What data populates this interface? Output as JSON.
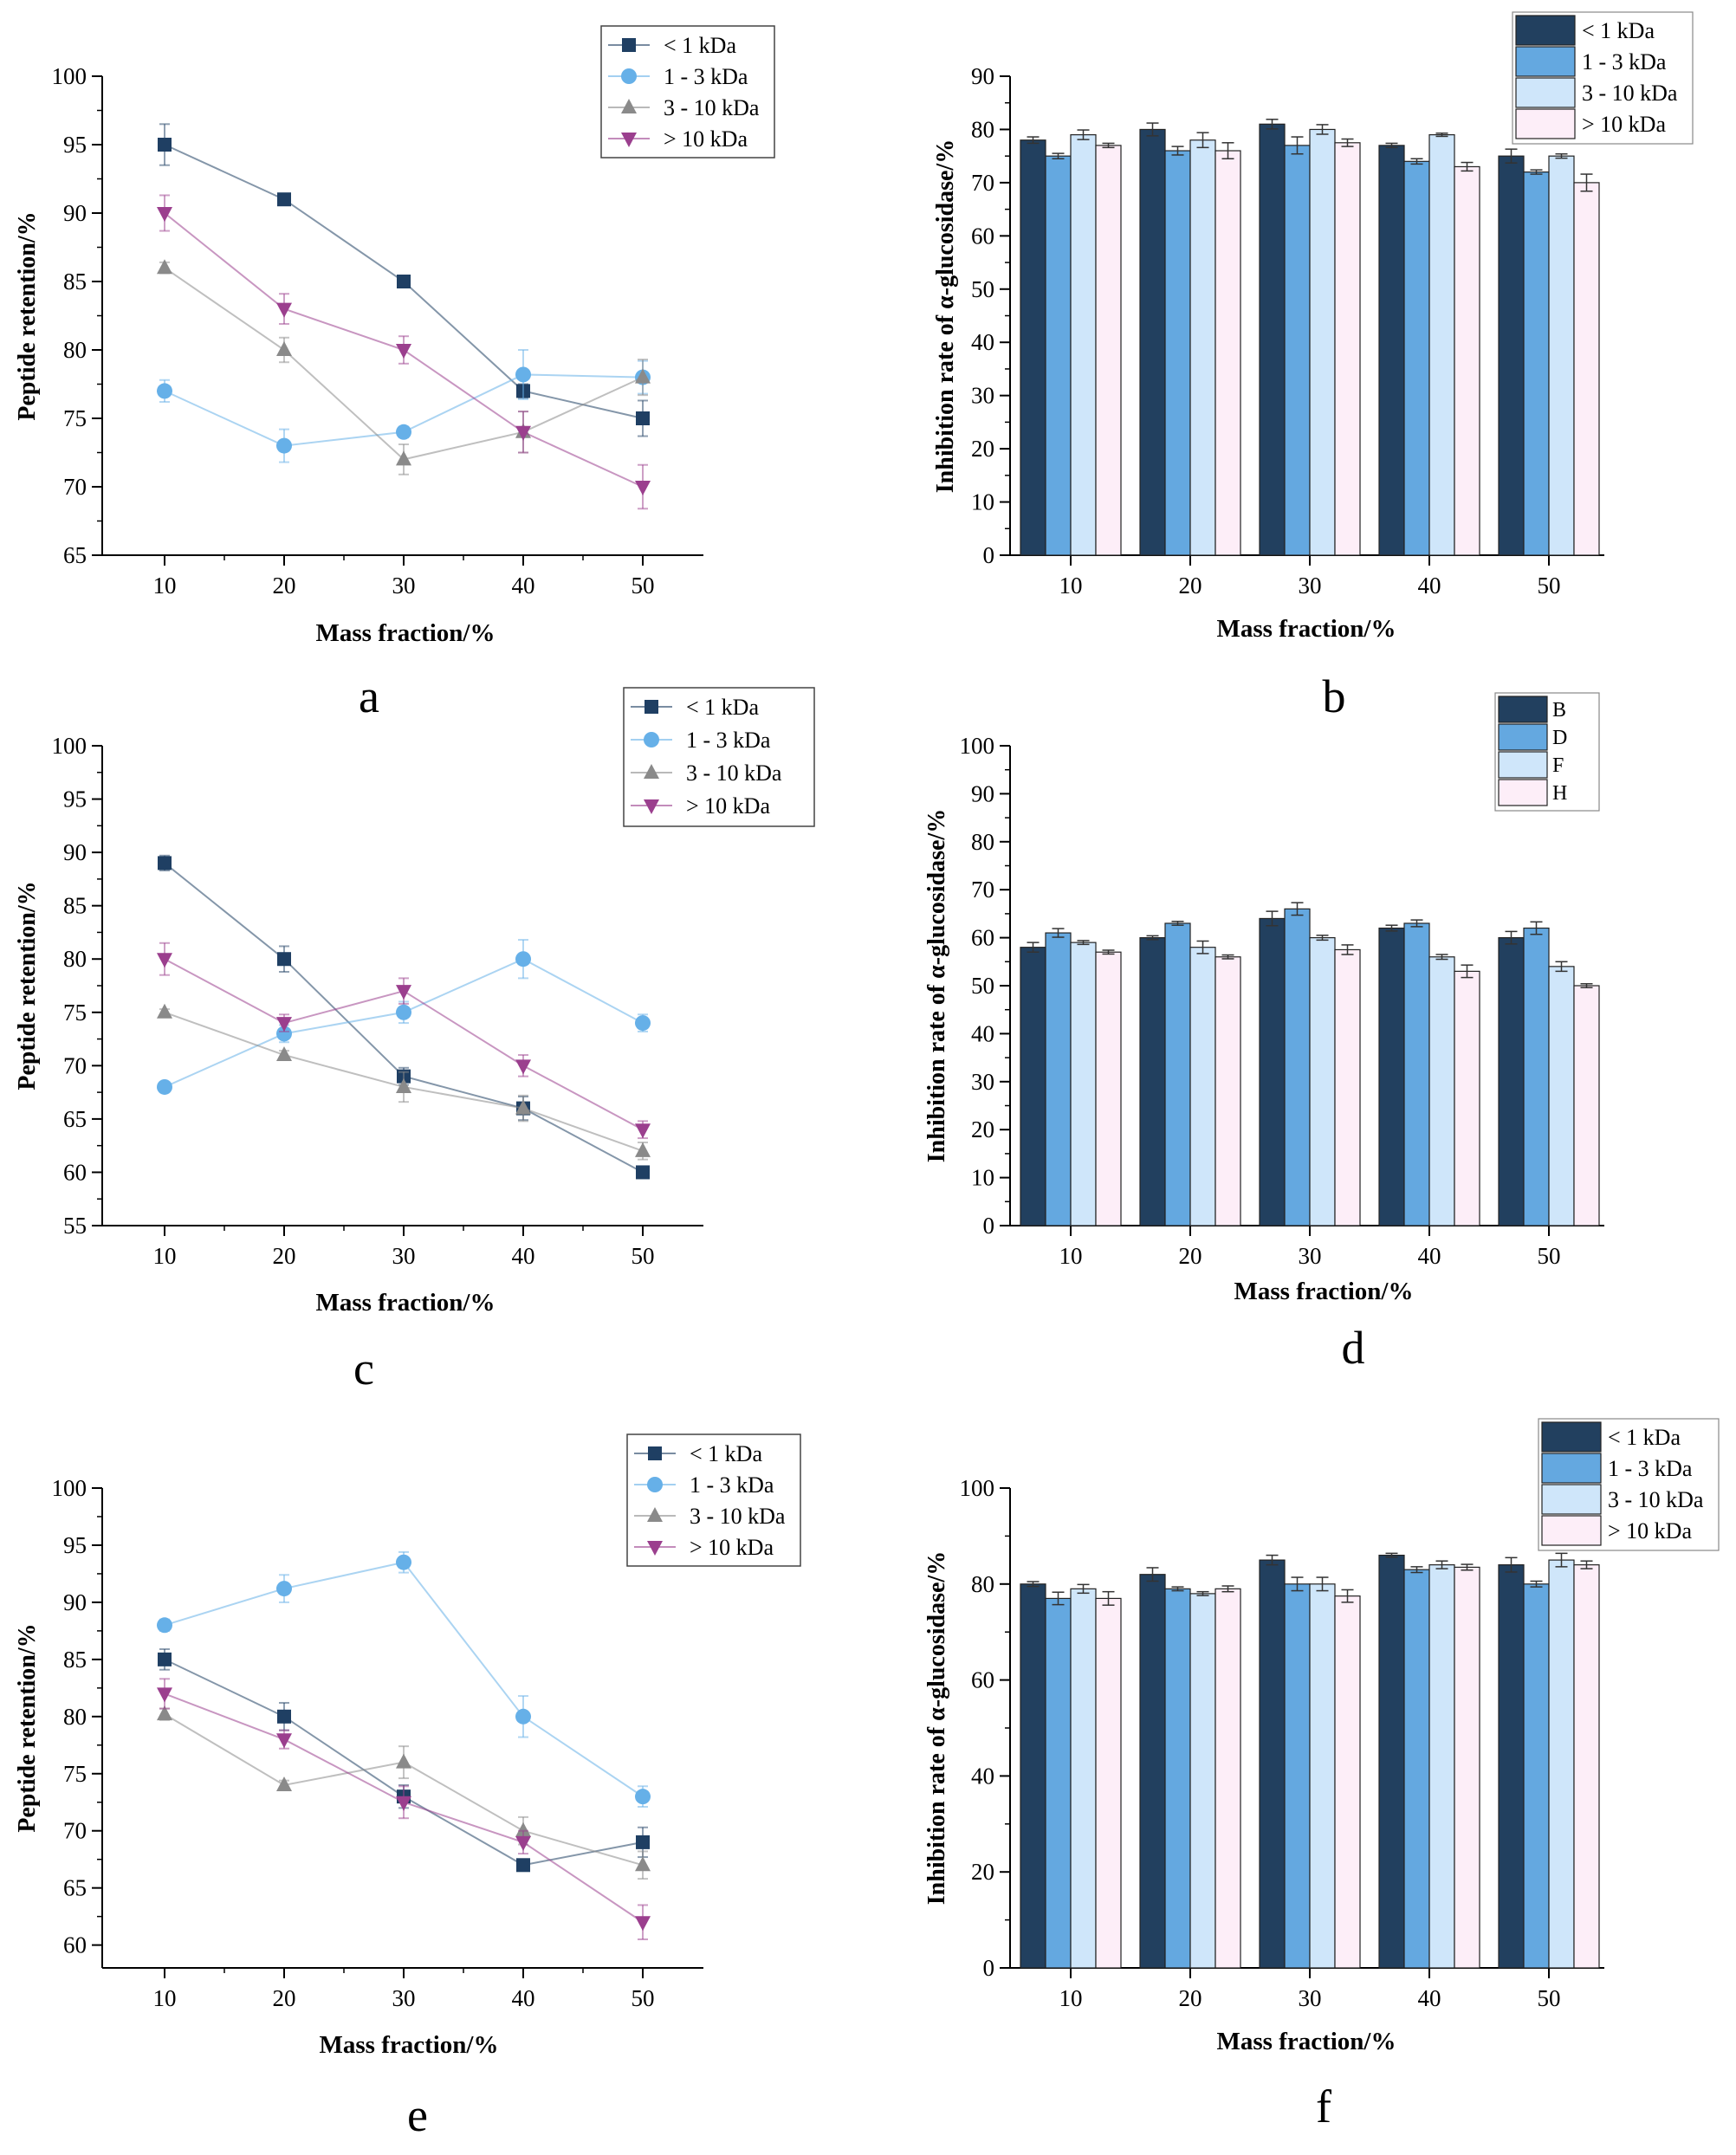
{
  "colors": {
    "lt1": "#1f3f63",
    "s1to3": "#66b0e8",
    "s3to10": "#8a8a8a",
    "gt10": "#9b3f8e",
    "bar1": "#22405f",
    "bar2": "#64a8e0",
    "bar3": "#cfe6fa",
    "bar4": "#fdeef8",
    "axis": "#000000"
  },
  "chart_data": [
    {
      "id": "a",
      "panel_label": "a",
      "type": "line",
      "xlabel": "Mass fraction/%",
      "ylabel": "Peptide retention/%",
      "ylim": [
        65,
        100
      ],
      "yticks": [
        65,
        70,
        75,
        80,
        85,
        90,
        95,
        100
      ],
      "categories": [
        "10",
        "20",
        "30",
        "40",
        "50"
      ],
      "legend": "top-right",
      "series": [
        {
          "name": "< 1 kDa",
          "marker": "square",
          "colorKey": "lt1",
          "values": [
            95,
            91,
            85,
            77,
            75
          ],
          "errors": [
            1.5,
            0.3,
            0.3,
            0.5,
            1.3
          ]
        },
        {
          "name": "1 - 3 kDa",
          "marker": "circle",
          "colorKey": "s1to3",
          "values": [
            77,
            73,
            74,
            78.2,
            78
          ],
          "errors": [
            0.8,
            1.2,
            0.4,
            1.8,
            1.2
          ]
        },
        {
          "name": "3 - 10 kDa",
          "marker": "triangle",
          "colorKey": "s3to10",
          "values": [
            86,
            80,
            72,
            74,
            78
          ],
          "errors": [
            0.4,
            0.9,
            1.1,
            1.5,
            1.3
          ]
        },
        {
          "name": "> 10 kDa",
          "marker": "triangle-down",
          "colorKey": "gt10",
          "values": [
            90,
            83,
            80,
            74,
            70
          ],
          "errors": [
            1.3,
            1.1,
            1.0,
            1.5,
            1.6
          ]
        }
      ]
    },
    {
      "id": "b",
      "panel_label": "b",
      "type": "bar",
      "xlabel": "Mass fraction/%",
      "ylabel": "Inhibition rate of α-glucosidase/%",
      "ylim": [
        0,
        90
      ],
      "yticks": [
        0,
        10,
        20,
        30,
        40,
        50,
        60,
        70,
        80,
        90
      ],
      "categories": [
        "10",
        "20",
        "30",
        "40",
        "50"
      ],
      "legend": "top-right",
      "series": [
        {
          "name": "< 1 kDa",
          "colorKey": "bar1",
          "values": [
            78,
            80,
            81,
            77,
            75
          ],
          "errors": [
            0.6,
            1.2,
            0.9,
            0.4,
            1.3
          ]
        },
        {
          "name": "1 - 3 kDa",
          "colorKey": "bar2",
          "values": [
            75,
            76,
            77,
            74,
            72
          ],
          "errors": [
            0.5,
            0.8,
            1.6,
            0.5,
            0.4
          ]
        },
        {
          "name": "3 - 10 kDa",
          "colorKey": "bar3",
          "values": [
            79,
            78,
            80,
            79,
            75
          ],
          "errors": [
            0.9,
            1.4,
            0.9,
            0.3,
            0.4
          ]
        },
        {
          "name": "> 10 kDa",
          "colorKey": "bar4",
          "values": [
            77,
            76,
            77.5,
            73,
            70
          ],
          "errors": [
            0.4,
            1.5,
            0.7,
            0.8,
            1.6
          ]
        }
      ]
    },
    {
      "id": "c",
      "panel_label": "c",
      "type": "line",
      "xlabel": "Mass fraction/%",
      "ylabel": "Peptide retention/%",
      "ylim": [
        55,
        100
      ],
      "yticks": [
        55,
        60,
        65,
        70,
        75,
        80,
        85,
        90,
        95,
        100
      ],
      "categories": [
        "10",
        "20",
        "30",
        "40",
        "50"
      ],
      "legend": "top-right",
      "series": [
        {
          "name": "< 1 kDa",
          "marker": "square",
          "colorKey": "lt1",
          "values": [
            89,
            80,
            69,
            66,
            60
          ],
          "errors": [
            0.7,
            1.2,
            0.8,
            1.1,
            0.3
          ]
        },
        {
          "name": "1 - 3 kDa",
          "marker": "circle",
          "colorKey": "s1to3",
          "values": [
            68,
            73,
            75,
            80,
            74
          ],
          "errors": [
            0.4,
            0.8,
            1.0,
            1.8,
            0.8
          ]
        },
        {
          "name": "3 - 10 kDa",
          "marker": "triangle",
          "colorKey": "s3to10",
          "values": [
            75,
            71,
            68,
            66,
            62
          ],
          "errors": [
            0.3,
            0.4,
            1.4,
            1.2,
            0.8
          ]
        },
        {
          "name": "> 10 kDa",
          "marker": "triangle-down",
          "colorKey": "gt10",
          "values": [
            80,
            74,
            77,
            70,
            64
          ],
          "errors": [
            1.5,
            0.8,
            1.2,
            1.0,
            0.8
          ]
        }
      ]
    },
    {
      "id": "d",
      "panel_label": "d",
      "type": "bar",
      "xlabel": "Mass fraction/%",
      "ylabel": "Inhibition rate of α-glucosidase/%",
      "ylim": [
        0,
        100
      ],
      "yticks": [
        0,
        10,
        20,
        30,
        40,
        50,
        60,
        70,
        80,
        90,
        100
      ],
      "categories": [
        "10",
        "20",
        "30",
        "40",
        "50"
      ],
      "legend": "top-right",
      "series": [
        {
          "name": "B",
          "colorKey": "bar1",
          "values": [
            58,
            60,
            64,
            62,
            60
          ],
          "errors": [
            1.0,
            0.4,
            1.5,
            0.6,
            1.3
          ]
        },
        {
          "name": "D",
          "colorKey": "bar2",
          "values": [
            61,
            63,
            66,
            63,
            62
          ],
          "errors": [
            0.9,
            0.4,
            1.3,
            0.7,
            1.3
          ]
        },
        {
          "name": "F",
          "colorKey": "bar3",
          "values": [
            59,
            58,
            60,
            56,
            54
          ],
          "errors": [
            0.4,
            1.3,
            0.5,
            0.5,
            1.0
          ]
        },
        {
          "name": "H",
          "colorKey": "bar4",
          "values": [
            57,
            56,
            57.5,
            53,
            50
          ],
          "errors": [
            0.4,
            0.4,
            1.0,
            1.3,
            0.4
          ]
        }
      ]
    },
    {
      "id": "e",
      "panel_label": "e",
      "type": "line",
      "xlabel": "Mass fraction/%",
      "ylabel": "Peptide retention/%",
      "ylim": [
        58,
        100
      ],
      "yticks": [
        60,
        65,
        70,
        75,
        80,
        85,
        90,
        95,
        100
      ],
      "categories": [
        "10",
        "20",
        "30",
        "40",
        "50"
      ],
      "legend": "top-right",
      "series": [
        {
          "name": "< 1 kDa",
          "marker": "square",
          "colorKey": "lt1",
          "values": [
            85,
            80,
            73,
            67,
            69
          ],
          "errors": [
            0.9,
            1.2,
            1.0,
            0.5,
            1.3
          ]
        },
        {
          "name": "1 - 3 kDa",
          "marker": "circle",
          "colorKey": "s1to3",
          "values": [
            88,
            91.2,
            93.5,
            80,
            73
          ],
          "errors": [
            0.5,
            1.2,
            0.9,
            1.8,
            0.9
          ]
        },
        {
          "name": "3 - 10 kDa",
          "marker": "triangle",
          "colorKey": "s3to10",
          "values": [
            80.2,
            74,
            76,
            70,
            67
          ],
          "errors": [
            0.5,
            0.4,
            1.4,
            1.2,
            1.2
          ]
        },
        {
          "name": "> 10 kDa",
          "marker": "triangle-down",
          "colorKey": "gt10",
          "values": [
            82,
            78,
            72.5,
            69,
            62
          ],
          "errors": [
            1.3,
            0.8,
            1.4,
            1.0,
            1.5
          ]
        }
      ]
    },
    {
      "id": "f",
      "panel_label": "f",
      "type": "bar",
      "xlabel": "Mass fraction/%",
      "ylabel": "Inhibition rate of α-glucosidase/%",
      "ylim": [
        0,
        100
      ],
      "yticks": [
        0,
        20,
        40,
        60,
        80,
        100
      ],
      "categories": [
        "10",
        "20",
        "30",
        "40",
        "50"
      ],
      "legend": "top-right",
      "series": [
        {
          "name": "< 1 kDa",
          "colorKey": "bar1",
          "values": [
            80,
            82,
            85,
            86,
            84
          ],
          "errors": [
            0.5,
            1.4,
            1.0,
            0.4,
            1.5
          ]
        },
        {
          "name": "1 - 3 kDa",
          "colorKey": "bar2",
          "values": [
            77,
            79,
            80,
            83,
            80
          ],
          "errors": [
            1.3,
            0.4,
            1.4,
            0.6,
            0.6
          ]
        },
        {
          "name": "3 - 10 kDa",
          "colorKey": "bar3",
          "values": [
            79,
            78,
            80,
            84,
            85
          ],
          "errors": [
            0.9,
            0.4,
            1.4,
            0.8,
            1.4
          ]
        },
        {
          "name": "> 10 kDa",
          "colorKey": "bar4",
          "values": [
            77,
            79,
            77.5,
            83.5,
            84
          ],
          "errors": [
            1.4,
            0.6,
            1.3,
            0.6,
            0.8
          ]
        }
      ]
    }
  ]
}
